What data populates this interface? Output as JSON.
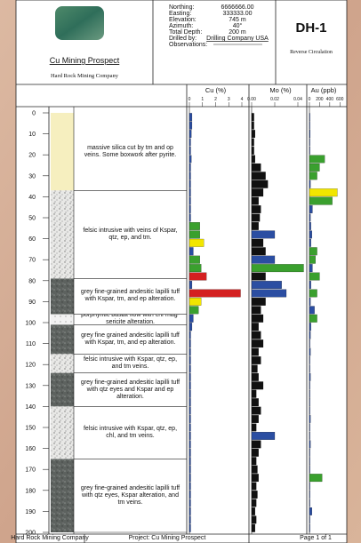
{
  "header": {
    "project": "Cu Mining Prospect",
    "company": "Hard Rock Mining Company",
    "fields": [
      {
        "label": "Northing:",
        "value": "6666666.00"
      },
      {
        "label": "Easting:",
        "value": "333333.00"
      },
      {
        "label": "Elevation:",
        "value": "745 m"
      },
      {
        "label": "Azimuth:",
        "value": "40°"
      },
      {
        "label": "Total Depth:",
        "value": "200 m"
      },
      {
        "label": "Drilled by:",
        "value": "Drilling Company USA"
      },
      {
        "label": "Observations:",
        "value": null
      }
    ],
    "hole_id": "DH-1",
    "method": "Reverse Circulation"
  },
  "depth_axis": {
    "lim": [
      0,
      200
    ],
    "ticks": [
      0,
      10,
      20,
      30,
      40,
      50,
      60,
      70,
      80,
      90,
      100,
      110,
      120,
      130,
      140,
      150,
      160,
      170,
      180,
      190,
      200
    ]
  },
  "lithology": [
    {
      "from": 0,
      "to": 37,
      "fill": "#f6efbf",
      "description": "massive silica cut by tm and op veins. Some boxwork after pyrite."
    },
    {
      "from": 37,
      "to": 79,
      "fill": "felsic",
      "description": "felsic intrusive with veins of Kspar, qtz, ep, and tm."
    },
    {
      "from": 79,
      "to": 96,
      "fill": "andesite",
      "description": "grey fine-grained andesitic lapilli tuff with Kspar, tm, and ep alteration."
    },
    {
      "from": 96,
      "to": 101,
      "fill": "basalt",
      "description": "porphyritic basalt flow with chl-mag-sericite alteration."
    },
    {
      "from": 101,
      "to": 115,
      "fill": "andesite",
      "description": "grey fine grained andesitic lapilli tuff with Kspar, tm, and ep alteration."
    },
    {
      "from": 115,
      "to": 124,
      "fill": "felsic",
      "description": "felsic intrusive with Kspar, qtz, ep, and tm veins."
    },
    {
      "from": 124,
      "to": 140,
      "fill": "andesite",
      "description": "grey fine-grained andesitic lapilli tuff with qtz eyes and Kspar and ep alteration."
    },
    {
      "from": 140,
      "to": 165,
      "fill": "felsic",
      "description": "felsic intrusive with Kspar, qtz, ep, chl, and tm veins."
    },
    {
      "from": 165,
      "to": 200,
      "fill": "andesite",
      "description": "grey fine-grained andesitic lapilli tuff with qtz eyes, Kspar alteration, and tm veins."
    }
  ],
  "assays": {
    "depths": [
      0,
      4,
      8,
      12,
      16,
      20,
      24,
      28,
      32,
      36,
      40,
      44,
      48,
      52,
      56,
      60,
      64,
      68,
      72,
      76,
      80,
      84,
      88,
      92,
      96,
      100,
      104,
      108,
      112,
      116,
      120,
      124,
      128,
      132,
      136,
      140,
      144,
      148,
      152,
      156,
      160,
      164,
      168,
      172,
      176,
      180,
      184,
      188,
      192,
      196
    ],
    "tracks": [
      {
        "name": "Cu (%)",
        "xlim": [
          0,
          4
        ],
        "ticks": [
          0,
          1,
          2,
          3,
          4
        ],
        "values": [
          0.2,
          0.2,
          0.15,
          0.1,
          0.1,
          0.15,
          0.1,
          0.1,
          0.1,
          0.1,
          0.1,
          0.1,
          0.1,
          0.8,
          0.8,
          1.1,
          0.3,
          0.8,
          0.9,
          1.3,
          0.2,
          3.9,
          0.9,
          0.7,
          0.3,
          0.2,
          0.1,
          0.1,
          0.1,
          0.1,
          0.1,
          0.1,
          0.1,
          0.1,
          0.1,
          0.1,
          0.1,
          0.1,
          0.1,
          0.1,
          0.1,
          0.1,
          0.1,
          0.1,
          0.1,
          0.1,
          0.1,
          0.1,
          0.1,
          0.1
        ],
        "colors": [
          "#2b4ea2",
          "#2b4ea2",
          "#2b4ea2",
          "#2b4ea2",
          "#2b4ea2",
          "#2b4ea2",
          "#2b4ea2",
          "#2b4ea2",
          "#2b4ea2",
          "#2b4ea2",
          "#2b4ea2",
          "#2b4ea2",
          "#2b4ea2",
          "#3aa02e",
          "#3aa02e",
          "#f2e600",
          "#2b4ea2",
          "#3aa02e",
          "#3aa02e",
          "#d42020",
          "#2b4ea2",
          "#d42020",
          "#f2e600",
          "#3aa02e",
          "#2b4ea2",
          "#2b4ea2",
          "#2b4ea2",
          "#2b4ea2",
          "#2b4ea2",
          "#2b4ea2",
          "#2b4ea2",
          "#2b4ea2",
          "#2b4ea2",
          "#2b4ea2",
          "#2b4ea2",
          "#2b4ea2",
          "#2b4ea2",
          "#2b4ea2",
          "#2b4ea2",
          "#2b4ea2",
          "#2b4ea2",
          "#2b4ea2",
          "#2b4ea2",
          "#2b4ea2",
          "#2b4ea2",
          "#2b4ea2",
          "#2b4ea2",
          "#2b4ea2",
          "#2b4ea2",
          "#2b4ea2"
        ]
      },
      {
        "name": "Mo (%)",
        "xlim": [
          0,
          0.05
        ],
        "ticks": [
          {
            "value": 0,
            "label": "0.00"
          },
          {
            "value": 0.02,
            "label": "0.02"
          },
          {
            "value": 0.04,
            "label": "0.04"
          }
        ],
        "values": [
          0.002,
          0.002,
          0.003,
          0.002,
          0.002,
          0.003,
          0.008,
          0.012,
          0.014,
          0.01,
          0.006,
          0.008,
          0.007,
          0.006,
          0.02,
          0.01,
          0.012,
          0.02,
          0.045,
          0.012,
          0.026,
          0.03,
          0.012,
          0.008,
          0.01,
          0.006,
          0.008,
          0.01,
          0.006,
          0.008,
          0.005,
          0.006,
          0.01,
          0.004,
          0.006,
          0.008,
          0.006,
          0.004,
          0.02,
          0.008,
          0.006,
          0.004,
          0.005,
          0.006,
          0.004,
          0.005,
          0.004,
          0.003,
          0.004,
          0.003
        ],
        "colors": [
          "#111",
          "#111",
          "#111",
          "#111",
          "#111",
          "#111",
          "#111",
          "#111",
          "#111",
          "#111",
          "#111",
          "#111",
          "#111",
          "#111",
          "#2b4ea2",
          "#111",
          "#111",
          "#2b4ea2",
          "#3aa02e",
          "#111",
          "#2b4ea2",
          "#2b4ea2",
          "#111",
          "#111",
          "#111",
          "#111",
          "#111",
          "#111",
          "#111",
          "#111",
          "#111",
          "#111",
          "#111",
          "#111",
          "#111",
          "#111",
          "#111",
          "#111",
          "#2b4ea2",
          "#111",
          "#111",
          "#111",
          "#111",
          "#111",
          "#111",
          "#111",
          "#111",
          "#111",
          "#111",
          "#111"
        ]
      },
      {
        "name": "Au (ppb)",
        "xlim": [
          0,
          700
        ],
        "ticks": [
          0,
          200,
          400,
          600
        ],
        "values": [
          10,
          10,
          15,
          10,
          10,
          300,
          200,
          150,
          20,
          550,
          450,
          60,
          20,
          30,
          50,
          30,
          150,
          120,
          60,
          200,
          30,
          150,
          20,
          100,
          150,
          30,
          20,
          10,
          20,
          10,
          10,
          20,
          10,
          10,
          10,
          10,
          20,
          10,
          10,
          20,
          10,
          10,
          10,
          250,
          10,
          10,
          10,
          50,
          10,
          10
        ],
        "colors": [
          "#2b4ea2",
          "#2b4ea2",
          "#2b4ea2",
          "#2b4ea2",
          "#2b4ea2",
          "#3aa02e",
          "#3aa02e",
          "#3aa02e",
          "#2b4ea2",
          "#f2e600",
          "#3aa02e",
          "#2b4ea2",
          "#2b4ea2",
          "#2b4ea2",
          "#2b4ea2",
          "#2b4ea2",
          "#3aa02e",
          "#3aa02e",
          "#2b4ea2",
          "#3aa02e",
          "#2b4ea2",
          "#3aa02e",
          "#2b4ea2",
          "#2b4ea2",
          "#3aa02e",
          "#2b4ea2",
          "#2b4ea2",
          "#2b4ea2",
          "#2b4ea2",
          "#2b4ea2",
          "#2b4ea2",
          "#2b4ea2",
          "#2b4ea2",
          "#2b4ea2",
          "#2b4ea2",
          "#2b4ea2",
          "#2b4ea2",
          "#2b4ea2",
          "#2b4ea2",
          "#2b4ea2",
          "#2b4ea2",
          "#2b4ea2",
          "#2b4ea2",
          "#3aa02e",
          "#2b4ea2",
          "#2b4ea2",
          "#2b4ea2",
          "#2b4ea2",
          "#2b4ea2",
          "#2b4ea2"
        ]
      }
    ]
  },
  "footer": {
    "left": "Hard Rock Mining Company",
    "center": "Project: Cu Mining Prospect",
    "right": "Page 1 of 1"
  }
}
